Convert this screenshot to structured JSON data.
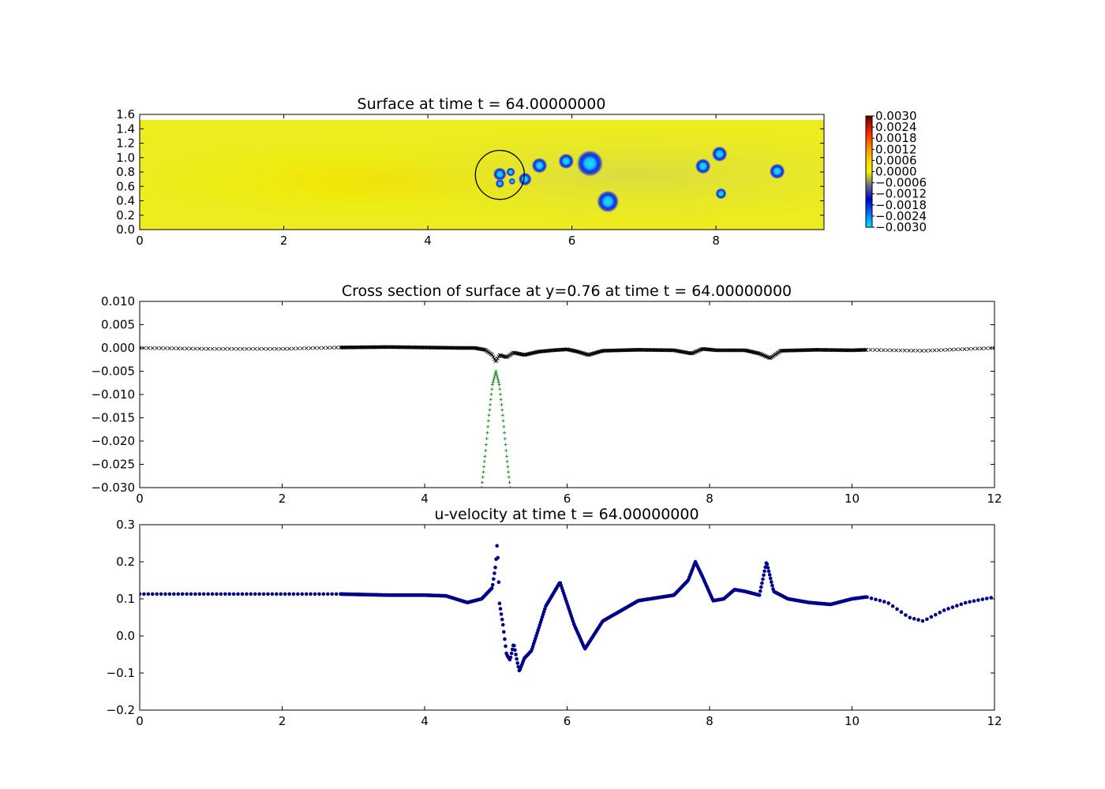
{
  "chart_data": [
    {
      "type": "heatmap",
      "title": "Surface at time t =    64.00000000",
      "xlim": [
        0,
        9.5
      ],
      "ylim": [
        0,
        1.6
      ],
      "xticks": [
        "0",
        "2",
        "4",
        "6",
        "8"
      ],
      "yticks": [
        "0.0",
        "0.2",
        "0.4",
        "0.6",
        "0.8",
        "1.0",
        "1.2",
        "1.4",
        "1.6"
      ],
      "colorbar_range": [
        -0.003,
        0.003
      ],
      "colorbar_ticks": [
        "0.0030",
        "0.0024",
        "0.0018",
        "0.0012",
        "0.0006",
        "0.0000",
        "−0.0006",
        "−0.0012",
        "−0.0018",
        "−0.0024",
        "−0.0030"
      ],
      "background_value": 0.0,
      "circle": {
        "cx": 5.0,
        "cy": 0.76,
        "r": 0.34
      },
      "depressions": [
        {
          "x": 5.0,
          "y": 0.77,
          "r": 0.06
        },
        {
          "x": 5.0,
          "y": 0.64,
          "r": 0.04
        },
        {
          "x": 5.15,
          "y": 0.8,
          "r": 0.04
        },
        {
          "x": 5.17,
          "y": 0.67,
          "r": 0.03
        },
        {
          "x": 5.35,
          "y": 0.7,
          "r": 0.06
        },
        {
          "x": 5.55,
          "y": 0.89,
          "r": 0.07
        },
        {
          "x": 5.92,
          "y": 0.95,
          "r": 0.07
        },
        {
          "x": 6.25,
          "y": 0.92,
          "r": 0.12
        },
        {
          "x": 6.5,
          "y": 0.39,
          "r": 0.1
        },
        {
          "x": 7.82,
          "y": 0.88,
          "r": 0.07
        },
        {
          "x": 8.05,
          "y": 1.05,
          "r": 0.07
        },
        {
          "x": 8.07,
          "y": 0.5,
          "r": 0.05
        },
        {
          "x": 8.85,
          "y": 0.81,
          "r": 0.07
        }
      ]
    },
    {
      "type": "scatter",
      "title": "Cross section of surface at y=0.76 at time t =    64.00000000",
      "xlim": [
        0,
        12
      ],
      "ylim": [
        -0.03,
        0.01
      ],
      "xticks": [
        "0",
        "2",
        "4",
        "6",
        "8",
        "10",
        "12"
      ],
      "yticks": [
        "0.010",
        "0.005",
        "0.000",
        "−0.005",
        "−0.010",
        "−0.015",
        "−0.020",
        "−0.025",
        "−0.030"
      ],
      "series": [
        {
          "marker": "x",
          "color": "#000000",
          "x": [
            0.0,
            1.0,
            2.0,
            2.8,
            3.5,
            4.0,
            4.5,
            4.7,
            4.85,
            4.95,
            5.0,
            5.05,
            5.15,
            5.25,
            5.4,
            5.6,
            5.8,
            6.0,
            6.15,
            6.3,
            6.5,
            7.0,
            7.5,
            7.75,
            7.9,
            8.1,
            8.5,
            8.7,
            8.85,
            9.0,
            9.5,
            10.0,
            10.2,
            11.0,
            12.0
          ],
          "y": [
            0.0,
            -0.0002,
            -0.0002,
            0.0001,
            0.0002,
            0.0001,
            0.0,
            0.0,
            -0.0004,
            -0.0015,
            -0.003,
            -0.0015,
            -0.002,
            -0.001,
            -0.0015,
            -0.0008,
            -0.0005,
            -0.0003,
            -0.0008,
            -0.0015,
            -0.0006,
            -0.0004,
            -0.0005,
            -0.0012,
            -0.0002,
            -0.0005,
            -0.0005,
            -0.0012,
            -0.0022,
            -0.0006,
            -0.0004,
            -0.0005,
            -0.0004,
            -0.0006,
            0.0
          ]
        },
        {
          "marker": "+",
          "color": "#008000",
          "x": [
            4.8,
            4.85,
            4.9,
            4.95,
            5.0,
            5.05,
            5.1,
            5.15,
            5.2
          ],
          "y": [
            -0.03,
            -0.023,
            -0.015,
            -0.008,
            -0.005,
            -0.008,
            -0.015,
            -0.023,
            -0.03
          ]
        }
      ]
    },
    {
      "type": "scatter",
      "title": "u-velocity at time t =    64.00000000",
      "xlim": [
        0,
        12
      ],
      "ylim": [
        -0.2,
        0.3
      ],
      "xticks": [
        "0",
        "2",
        "4",
        "6",
        "8",
        "10",
        "12"
      ],
      "yticks": [
        "0.3",
        "0.2",
        "0.1",
        "0.0",
        "−0.1",
        "−0.2"
      ],
      "series": [
        {
          "marker": "o",
          "color": "#00008b",
          "x": [
            0.0,
            1.0,
            2.0,
            2.8,
            3.5,
            4.0,
            4.3,
            4.6,
            4.8,
            4.95,
            5.0,
            5.02,
            5.05,
            5.1,
            5.15,
            5.2,
            5.25,
            5.3,
            5.33,
            5.4,
            5.5,
            5.7,
            5.9,
            6.1,
            6.25,
            6.5,
            7.0,
            7.5,
            7.7,
            7.8,
            7.9,
            8.05,
            8.2,
            8.35,
            8.5,
            8.7,
            8.8,
            8.9,
            9.1,
            9.4,
            9.7,
            10.0,
            10.2,
            10.5,
            10.8,
            11.0,
            11.3,
            11.6,
            12.0
          ],
          "y": [
            0.113,
            0.113,
            0.113,
            0.113,
            0.11,
            0.11,
            0.108,
            0.09,
            0.1,
            0.13,
            0.195,
            0.255,
            0.09,
            0.03,
            -0.05,
            -0.065,
            -0.02,
            -0.07,
            -0.095,
            -0.06,
            -0.04,
            0.08,
            0.145,
            0.03,
            -0.035,
            0.04,
            0.095,
            0.11,
            0.15,
            0.2,
            0.16,
            0.095,
            0.1,
            0.125,
            0.12,
            0.11,
            0.2,
            0.12,
            0.1,
            0.09,
            0.085,
            0.1,
            0.105,
            0.09,
            0.05,
            0.04,
            0.07,
            0.09,
            0.105
          ]
        }
      ]
    }
  ]
}
